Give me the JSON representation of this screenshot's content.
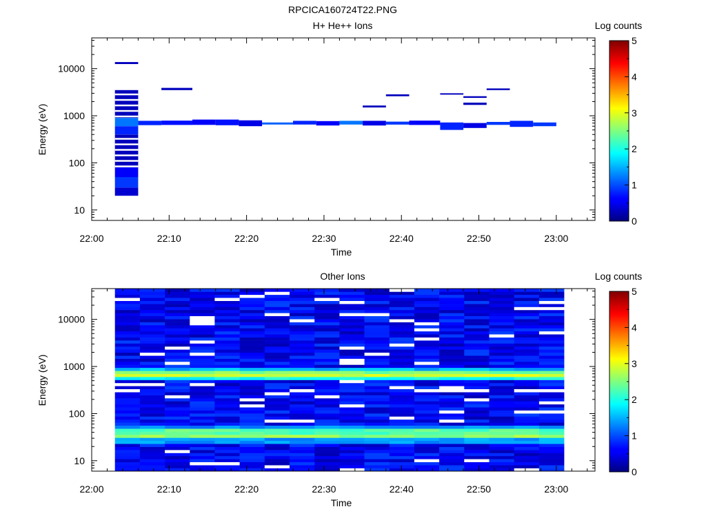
{
  "figure_title": "RPCICA160724T22.PNG",
  "chart_data": [
    {
      "type": "heatmap",
      "title": "H+ He++ Ions",
      "xlabel": "Time",
      "ylabel": "Energy (eV)",
      "x_ticks": [
        "22:00",
        "22:10",
        "22:20",
        "22:30",
        "22:40",
        "22:50",
        "23:00"
      ],
      "xlim": [
        "22:00",
        "23:05"
      ],
      "y_scale": "log",
      "y_ticks": [
        10,
        100,
        1000,
        10000
      ],
      "y_tick_labels": [
        "10",
        "100",
        "1000",
        "10000"
      ],
      "ylim": [
        6,
        45000
      ],
      "colorbar": {
        "label": "Log counts",
        "range": [
          0,
          5
        ],
        "ticks": [
          "0",
          "1",
          "2",
          "3",
          "4",
          "5"
        ]
      },
      "time_bins": [
        "22:03",
        "22:06",
        "22:09",
        "22:13",
        "22:16",
        "22:19",
        "22:22",
        "22:26",
        "22:29",
        "22:32",
        "22:35",
        "22:38",
        "22:41",
        "22:45",
        "22:48",
        "22:51",
        "22:54",
        "22:57",
        "23:00"
      ],
      "cells": [
        {
          "t": 0,
          "e": [
            20,
            30
          ],
          "v": 0.4
        },
        {
          "t": 0,
          "e": [
            30,
            50
          ],
          "v": 0.9
        },
        {
          "t": 0,
          "e": [
            50,
            80
          ],
          "v": 0.6
        },
        {
          "t": 0,
          "e": [
            80,
            400
          ],
          "v": 0.3
        },
        {
          "t": 0,
          "e": [
            400,
            600
          ],
          "v": 0.8
        },
        {
          "t": 0,
          "e": [
            600,
            900
          ],
          "v": 1.2
        },
        {
          "t": 0,
          "e": [
            900,
            3500
          ],
          "v": 0.3
        },
        {
          "t": 0,
          "e": [
            12500,
            13800
          ],
          "v": 0.3
        },
        {
          "t": 1,
          "e": [
            630,
            780
          ],
          "v": 0.8
        },
        {
          "t": 2,
          "e": [
            640,
            790
          ],
          "v": 0.7
        },
        {
          "t": 2,
          "e": [
            3500,
            3900
          ],
          "v": 0.3
        },
        {
          "t": 3,
          "e": [
            640,
            830
          ],
          "v": 0.6
        },
        {
          "t": 4,
          "e": [
            630,
            830
          ],
          "v": 0.7
        },
        {
          "t": 5,
          "e": [
            600,
            800
          ],
          "v": 0.5
        },
        {
          "t": 6,
          "e": [
            650,
            720
          ],
          "v": 1.1
        },
        {
          "t": 7,
          "e": [
            650,
            780
          ],
          "v": 0.8
        },
        {
          "t": 8,
          "e": [
            620,
            770
          ],
          "v": 0.6
        },
        {
          "t": 9,
          "e": [
            650,
            780
          ],
          "v": 1.2
        },
        {
          "t": 10,
          "e": [
            620,
            780
          ],
          "v": 0.5
        },
        {
          "t": 10,
          "e": [
            1500,
            1650
          ],
          "v": 0.3
        },
        {
          "t": 11,
          "e": [
            650,
            750
          ],
          "v": 0.9
        },
        {
          "t": 11,
          "e": [
            2600,
            2850
          ],
          "v": 0.3
        },
        {
          "t": 12,
          "e": [
            640,
            790
          ],
          "v": 0.6
        },
        {
          "t": 13,
          "e": [
            500,
            720
          ],
          "v": 0.8
        },
        {
          "t": 13,
          "e": [
            2800,
            3000
          ],
          "v": 0.3
        },
        {
          "t": 14,
          "e": [
            550,
            700
          ],
          "v": 0.5
        },
        {
          "t": 14,
          "e": [
            1700,
            1900
          ],
          "v": 0.3
        },
        {
          "t": 14,
          "e": [
            2400,
            2600
          ],
          "v": 0.3
        },
        {
          "t": 15,
          "e": [
            640,
            740
          ],
          "v": 0.9
        },
        {
          "t": 15,
          "e": [
            3500,
            3800
          ],
          "v": 0.3
        },
        {
          "t": 16,
          "e": [
            580,
            780
          ],
          "v": 0.8
        },
        {
          "t": 17,
          "e": [
            600,
            720
          ],
          "v": 0.9
        }
      ]
    },
    {
      "type": "heatmap",
      "title": "Other Ions",
      "xlabel": "Time",
      "ylabel": "Energy (eV)",
      "x_ticks": [
        "22:00",
        "22:10",
        "22:20",
        "22:30",
        "22:40",
        "22:50",
        "23:00"
      ],
      "xlim": [
        "22:00",
        "23:05"
      ],
      "y_scale": "log",
      "y_ticks": [
        10,
        100,
        1000,
        10000
      ],
      "y_tick_labels": [
        "10",
        "100",
        "1000",
        "10000"
      ],
      "ylim": [
        6,
        45000
      ],
      "colorbar": {
        "label": "Log counts",
        "range": [
          0,
          5
        ],
        "ticks": [
          "0",
          "1",
          "2",
          "3",
          "4",
          "5"
        ]
      },
      "time_range": [
        "22:03",
        "23:01"
      ],
      "energy_range": [
        6,
        45000
      ],
      "background_level": 0.6,
      "bands": [
        {
          "e": [
            24,
            32
          ],
          "v": 1.4
        },
        {
          "e": [
            32,
            38
          ],
          "v": 2.6
        },
        {
          "e": [
            38,
            48
          ],
          "v": 2.3
        },
        {
          "e": [
            48,
            55
          ],
          "v": 1.3
        },
        {
          "e": [
            520,
            600
          ],
          "v": 1.9
        },
        {
          "e": [
            600,
            680
          ],
          "v": 2.9
        },
        {
          "e": [
            680,
            780
          ],
          "v": 2.5
        },
        {
          "e": [
            780,
            900
          ],
          "v": 1.5
        }
      ]
    }
  ]
}
